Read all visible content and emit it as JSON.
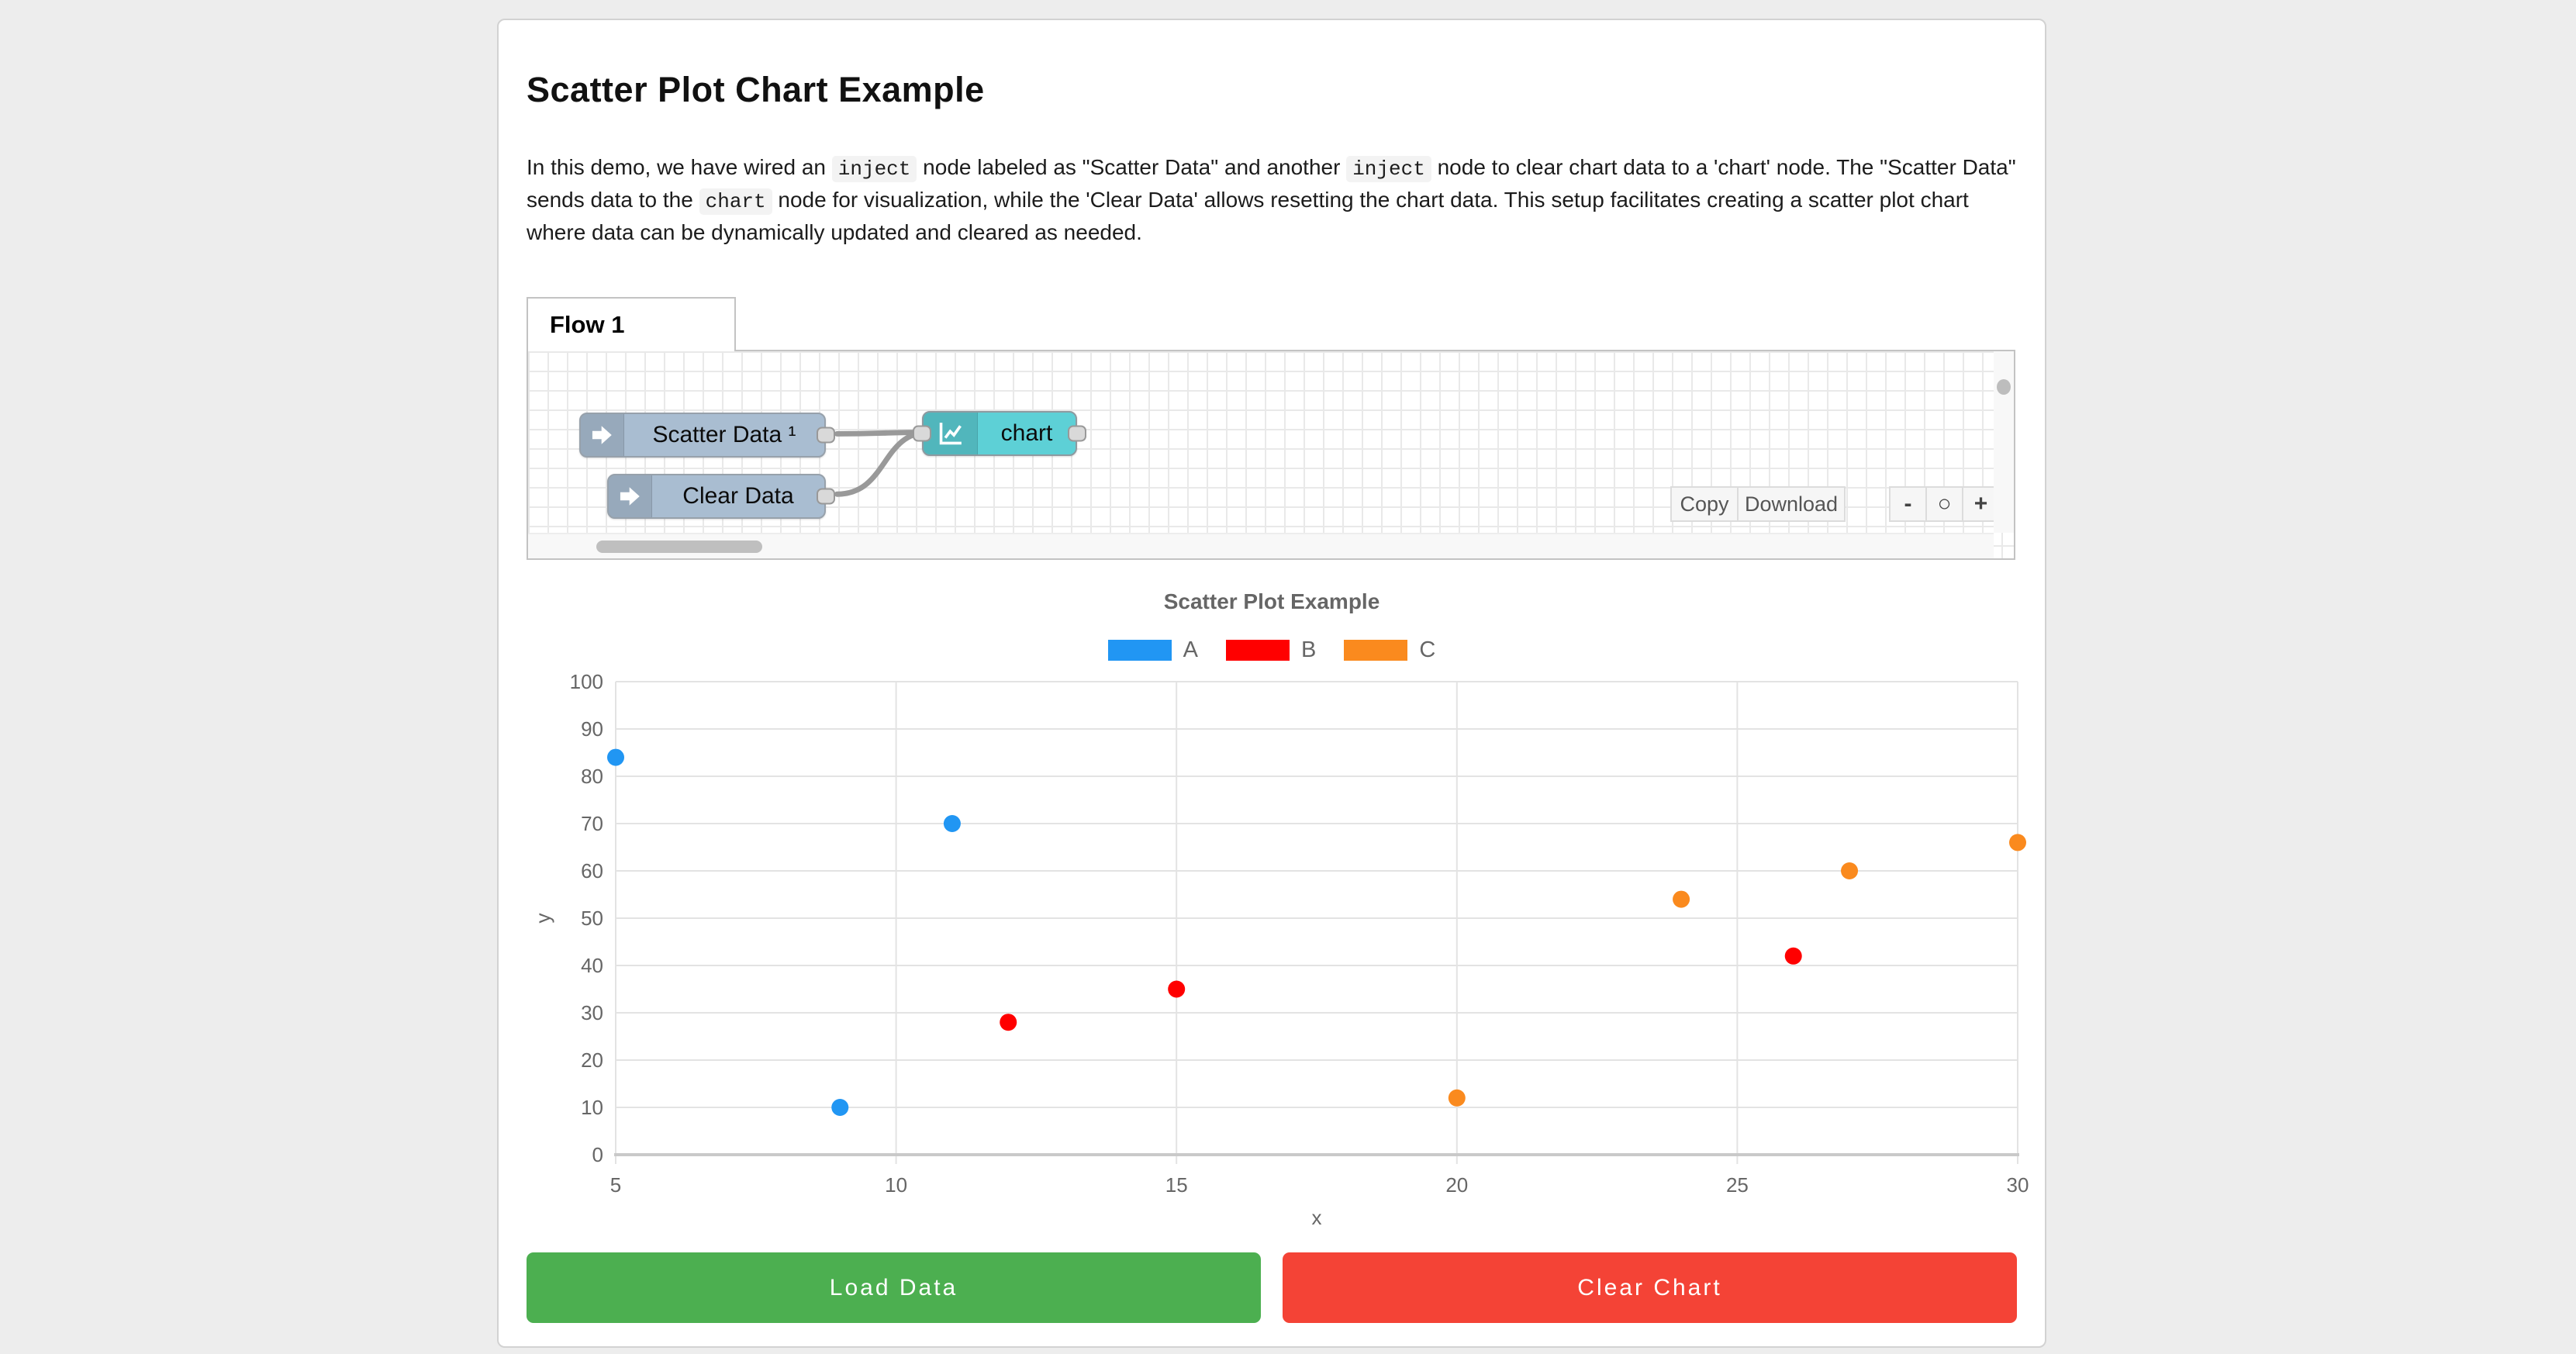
{
  "header": {
    "title": "Scatter Plot Chart Example"
  },
  "description": {
    "segments": [
      {
        "code": false,
        "text": "In this demo, we have wired an "
      },
      {
        "code": true,
        "text": "inject"
      },
      {
        "code": false,
        "text": " node labeled as \"Scatter Data\" and another "
      },
      {
        "code": true,
        "text": "inject"
      },
      {
        "code": false,
        "text": " node to clear chart data to a 'chart' node. The \"Scatter Data\" sends data to the "
      },
      {
        "code": true,
        "text": "chart"
      },
      {
        "code": false,
        "text": " node for visualization, while the 'Clear Data' allows resetting the chart data. This setup facilitates creating a scatter plot chart where data can be dynamically updated and cleared as needed."
      }
    ]
  },
  "flow": {
    "tab_label": "Flow 1",
    "nodes": [
      {
        "label": "Scatter Data ¹",
        "type": "inject",
        "color": "#a9bdd1",
        "icon": "inject-arrow-icon"
      },
      {
        "label": "Clear Data",
        "type": "inject",
        "color": "#a9bdd1",
        "icon": "inject-arrow-icon"
      },
      {
        "label": "chart",
        "type": "chart",
        "color": "#5dd0d6",
        "icon": "line-chart-icon"
      }
    ],
    "wire_color": "#999999",
    "toolbar": {
      "copy_label": "Copy",
      "download_label": "Download"
    },
    "zoom_controls": {
      "zoom_out_label": "-",
      "zoom_reset_label": "○",
      "zoom_in_label": "+"
    }
  },
  "chart_data": {
    "type": "scatter",
    "title": "Scatter Plot Example",
    "xlabel": "x",
    "ylabel": "y",
    "xlim": [
      5,
      30
    ],
    "ylim": [
      0,
      100
    ],
    "x_ticks": [
      5,
      10,
      15,
      20,
      25,
      30
    ],
    "y_ticks": [
      0,
      10,
      20,
      30,
      40,
      50,
      60,
      70,
      80,
      90,
      100
    ],
    "grid": true,
    "legend_position": "top",
    "series": [
      {
        "name": "A",
        "color": "#2196f3",
        "points": [
          [
            5,
            84
          ],
          [
            9,
            10
          ],
          [
            11,
            70
          ]
        ]
      },
      {
        "name": "B",
        "color": "#ff0000",
        "points": [
          [
            12,
            28
          ],
          [
            15,
            35
          ],
          [
            26,
            42
          ]
        ]
      },
      {
        "name": "C",
        "color": "#fa8a1e",
        "points": [
          [
            20,
            12
          ],
          [
            24,
            54
          ],
          [
            27,
            60
          ],
          [
            30,
            66
          ]
        ]
      }
    ]
  },
  "actions": {
    "load_label": "Load Data",
    "load_color": "#4caf50",
    "clear_label": "Clear Chart",
    "clear_color": "#f44336"
  }
}
